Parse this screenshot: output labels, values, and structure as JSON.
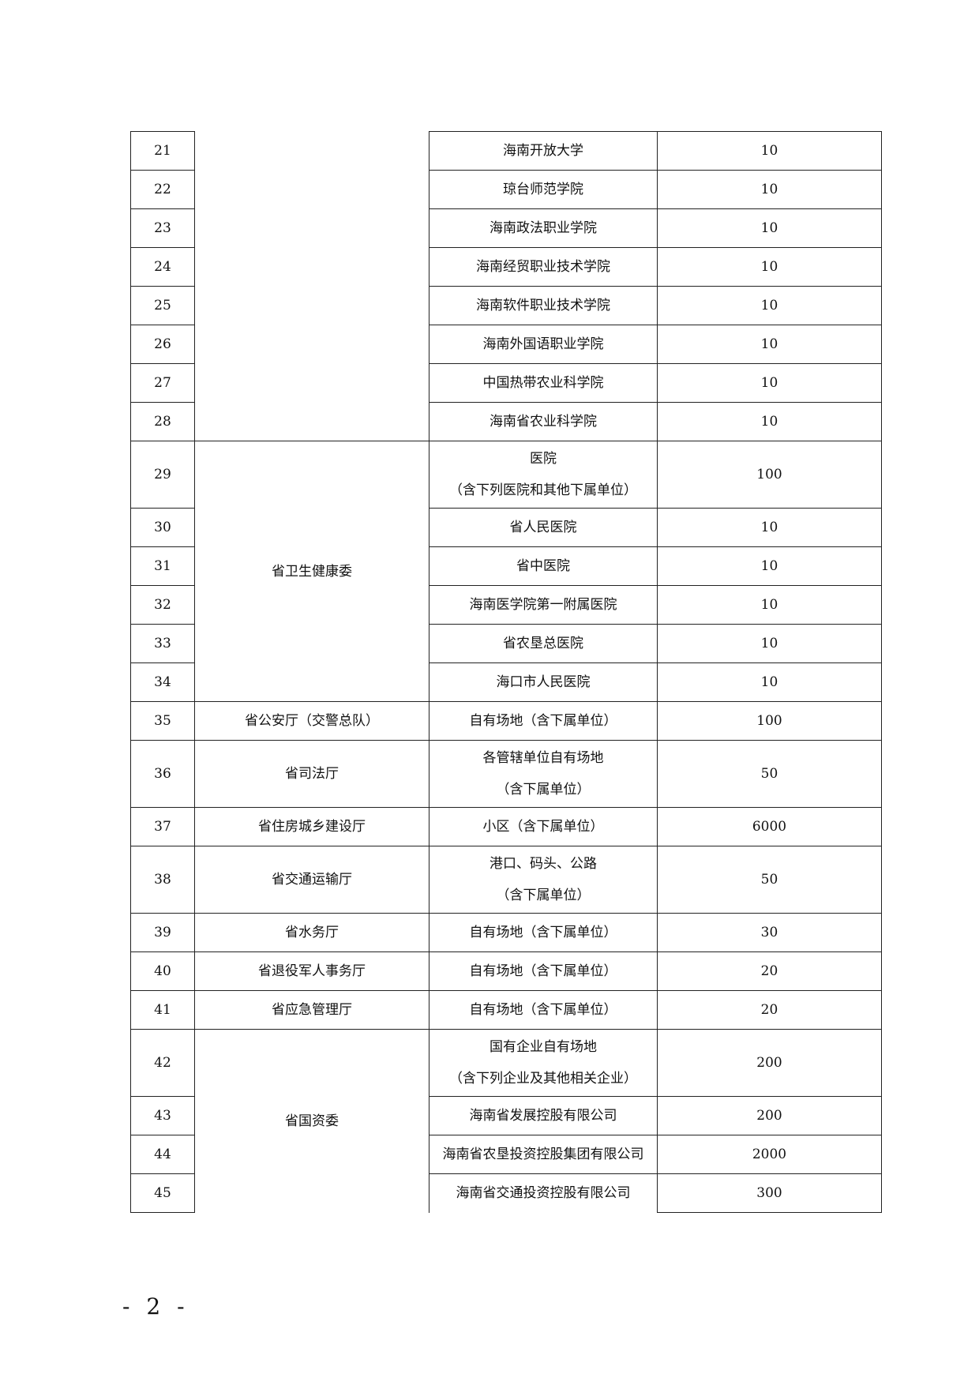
{
  "table": {
    "rows": [
      {
        "no": "21",
        "item": [
          "海南开放大学"
        ],
        "value": "10"
      },
      {
        "no": "22",
        "item": [
          "琼台师范学院"
        ],
        "value": "10"
      },
      {
        "no": "23",
        "item": [
          "海南政法职业学院"
        ],
        "value": "10"
      },
      {
        "no": "24",
        "item": [
          "海南经贸职业技术学院"
        ],
        "value": "10"
      },
      {
        "no": "25",
        "item": [
          "海南软件职业技术学院"
        ],
        "value": "10"
      },
      {
        "no": "26",
        "item": [
          "海南外国语职业学院"
        ],
        "value": "10"
      },
      {
        "no": "27",
        "item": [
          "中国热带农业科学院"
        ],
        "value": "10"
      },
      {
        "no": "28",
        "item": [
          "海南省农业科学院"
        ],
        "value": "10"
      },
      {
        "no": "29",
        "item": [
          "医院",
          "（含下列医院和其他下属单位）"
        ],
        "value": "100"
      },
      {
        "no": "30",
        "item": [
          "省人民医院"
        ],
        "value": "10"
      },
      {
        "no": "31",
        "item": [
          "省中医院"
        ],
        "value": "10"
      },
      {
        "no": "32",
        "item": [
          "海南医学院第一附属医院"
        ],
        "value": "10"
      },
      {
        "no": "33",
        "item": [
          "省农垦总医院"
        ],
        "value": "10"
      },
      {
        "no": "34",
        "item": [
          "海口市人民医院"
        ],
        "value": "10"
      },
      {
        "no": "35",
        "item": [
          "自有场地（含下属单位）"
        ],
        "value": "100"
      },
      {
        "no": "36",
        "item": [
          "各管辖单位自有场地",
          "（含下属单位）"
        ],
        "value": "50"
      },
      {
        "no": "37",
        "item": [
          "小区（含下属单位）"
        ],
        "value": "6000"
      },
      {
        "no": "38",
        "item": [
          "港口、码头、公路",
          "（含下属单位）"
        ],
        "value": "50"
      },
      {
        "no": "39",
        "item": [
          "自有场地（含下属单位）"
        ],
        "value": "30"
      },
      {
        "no": "40",
        "item": [
          "自有场地（含下属单位）"
        ],
        "value": "20"
      },
      {
        "no": "41",
        "item": [
          "自有场地（含下属单位）"
        ],
        "value": "20"
      },
      {
        "no": "42",
        "item": [
          "国有企业自有场地",
          "（含下列企业及其他相关企业）"
        ],
        "value": "200"
      },
      {
        "no": "43",
        "item": [
          "海南省发展控股有限公司"
        ],
        "value": "200"
      },
      {
        "no": "44",
        "item": [
          "海南省农垦投资控股集团有限公司"
        ],
        "value": "2000"
      },
      {
        "no": "45",
        "item": [
          "海南省交通投资控股有限公司"
        ],
        "value": "300"
      }
    ],
    "groups": [
      {
        "label": "",
        "start": 0,
        "span": 8
      },
      {
        "label": "省卫生健康委",
        "start": 8,
        "span": 6
      },
      {
        "label": "省公安厅（交警总队）",
        "start": 14,
        "span": 1
      },
      {
        "label": "省司法厅",
        "start": 15,
        "span": 1
      },
      {
        "label": "省住房城乡建设厅",
        "start": 16,
        "span": 1
      },
      {
        "label": "省交通运输厅",
        "start": 17,
        "span": 1
      },
      {
        "label": "省水务厅",
        "start": 18,
        "span": 1
      },
      {
        "label": "省退役军人事务厅",
        "start": 19,
        "span": 1
      },
      {
        "label": "省应急管理厅",
        "start": 20,
        "span": 1
      },
      {
        "label": "省国资委",
        "start": 21,
        "span": 4
      }
    ]
  },
  "footer": {
    "page_number": "- 2 -"
  }
}
